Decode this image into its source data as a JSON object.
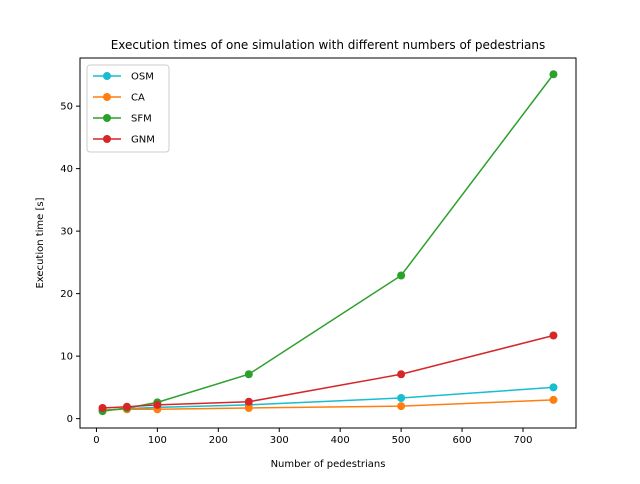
{
  "chart_data": {
    "type": "line",
    "title": "Execution times of one simulation with different numbers of pedestrians",
    "xlabel": "Number of pedestrians",
    "ylabel": "Execution time [s]",
    "x": [
      10,
      50,
      100,
      250,
      500,
      750
    ],
    "xlim": [
      -27,
      787
    ],
    "ylim": [
      -1.5,
      57.7
    ],
    "xticks": [
      0,
      100,
      200,
      300,
      400,
      500,
      600,
      700
    ],
    "yticks": [
      0,
      10,
      20,
      30,
      40,
      50
    ],
    "grid": false,
    "legend_position": "upper-left",
    "series": [
      {
        "name": "OSM",
        "color": "#17becf",
        "values": [
          1.3,
          1.6,
          1.8,
          2.2,
          3.3,
          5.0
        ]
      },
      {
        "name": "CA",
        "color": "#ff7f0e",
        "values": [
          1.4,
          1.5,
          1.5,
          1.7,
          2.0,
          3.0
        ]
      },
      {
        "name": "SFM",
        "color": "#2ca02c",
        "values": [
          1.2,
          1.7,
          2.6,
          7.1,
          22.9,
          55.1
        ]
      },
      {
        "name": "GNM",
        "color": "#d62728",
        "values": [
          1.7,
          1.9,
          2.2,
          2.7,
          7.1,
          13.3
        ]
      }
    ]
  }
}
